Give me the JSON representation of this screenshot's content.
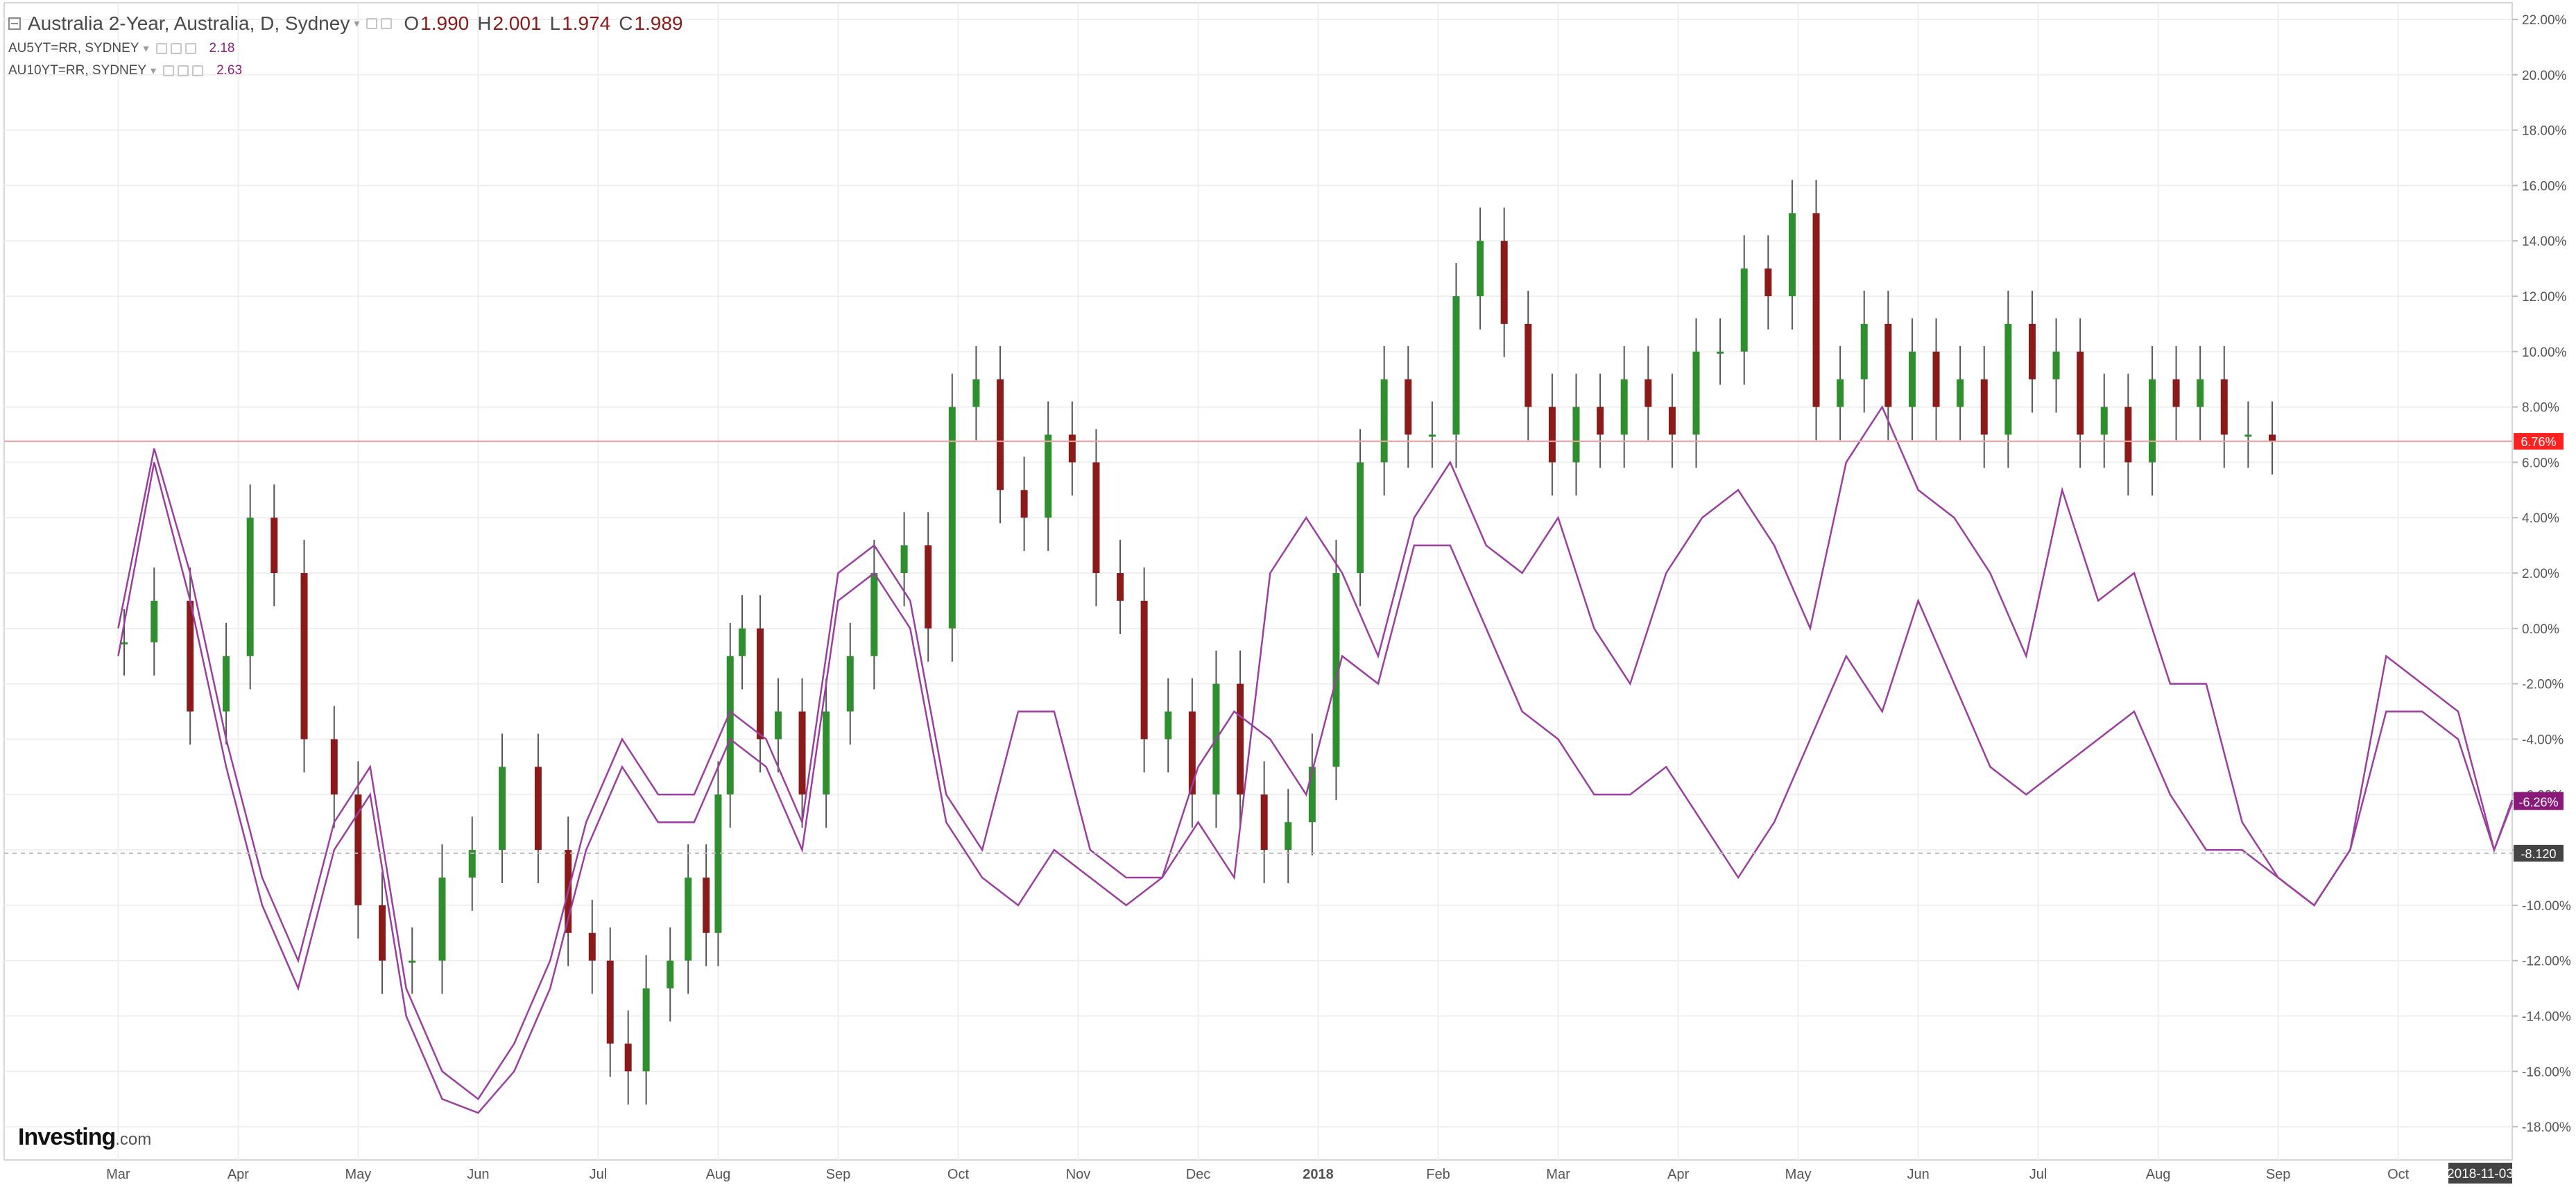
{
  "legend": {
    "main": {
      "title": "Australia 2-Year, Australia, D, Sydney",
      "o_label": "O",
      "o": "1.990",
      "h_label": "H",
      "h": "2.001",
      "l_label": "L",
      "l": "1.974",
      "c_label": "C",
      "c": "1.989"
    },
    "indicators": [
      {
        "name": "AU5YT=RR, SYDNEY",
        "value": "2.18",
        "color": "#9b3f9e"
      },
      {
        "name": "AU10YT=RR, SYDNEY",
        "value": "2.63",
        "color": "#9b3f9e"
      }
    ]
  },
  "logo": {
    "brand": "Investing",
    "suffix": ".com"
  },
  "colors": {
    "up_candle": "#2f8f2f",
    "down_candle": "#8b1a1a",
    "wick": "#555555",
    "line_series": "#9b3f9e",
    "hline": "#f0a0a0",
    "badge_red": "#ff2020",
    "badge_purple": "#8a1a7a",
    "badge_dark": "#444444",
    "grid": "#efefef"
  },
  "chart_data": {
    "type": "line",
    "title": "Australia 2-Year, Australia, D, Sydney",
    "ylabel": "",
    "ylim": [
      -19,
      22.5
    ],
    "y_ticks": [
      "22.00%",
      "20.00%",
      "18.00%",
      "16.00%",
      "14.00%",
      "12.00%",
      "10.00%",
      "8.00%",
      "6.00%",
      "4.00%",
      "2.00%",
      "0.00%",
      "-2.00%",
      "-4.00%",
      "-6.00%",
      "-8.00%",
      "-10.00%",
      "-12.00%",
      "-14.00%",
      "-16.00%",
      "-18.00%"
    ],
    "x_ticks": [
      "Mar",
      "Apr",
      "May",
      "Jun",
      "Jul",
      "Aug",
      "Sep",
      "Oct",
      "Nov",
      "Dec",
      "2018",
      "Feb",
      "Mar",
      "Apr",
      "May",
      "Jun",
      "Jul",
      "Aug",
      "Sep",
      "Oct"
    ],
    "x_tick_positions": [
      1,
      2,
      3,
      4,
      5,
      6,
      7,
      8,
      9,
      10,
      11,
      12,
      13,
      14,
      15,
      16,
      17,
      18,
      19,
      20
    ],
    "x_start_index": 0.05,
    "x_end_index": 20.95,
    "last_date_label": "2018-11-03",
    "candles_approx_close": [
      -0.5,
      1,
      -3,
      -1,
      4,
      2,
      -4,
      -6,
      -10,
      -12,
      -12,
      -9,
      -8,
      -5,
      -8,
      -11,
      -12,
      -15,
      -16,
      -13,
      -12,
      -9,
      -11,
      -6,
      -1,
      0,
      -4,
      -3,
      -6,
      -3,
      -1,
      2,
      3,
      0,
      8,
      9,
      5,
      4,
      7,
      6,
      2,
      1,
      -4,
      -3,
      -6,
      -2,
      -6,
      -8,
      -7,
      -5,
      2,
      6,
      9,
      7,
      7,
      12,
      14,
      11,
      8,
      6,
      8,
      7,
      9,
      8,
      7,
      10,
      10,
      13,
      12,
      15,
      8,
      9,
      11,
      8,
      10,
      8,
      9,
      7,
      11,
      9,
      10,
      7,
      8,
      6,
      9,
      8,
      9,
      7,
      7,
      6.76
    ],
    "candle_tick_positions": [
      1.05,
      1.3,
      1.6,
      1.9,
      2.1,
      2.3,
      2.55,
      2.8,
      3.0,
      3.2,
      3.45,
      3.7,
      3.95,
      4.2,
      4.5,
      4.75,
      4.95,
      5.1,
      5.25,
      5.4,
      5.6,
      5.75,
      5.9,
      6.0,
      6.1,
      6.2,
      6.35,
      6.5,
      6.7,
      6.9,
      7.1,
      7.3,
      7.55,
      7.75,
      7.95,
      8.15,
      8.35,
      8.55,
      8.75,
      8.95,
      9.15,
      9.35,
      9.55,
      9.75,
      9.95,
      10.15,
      10.35,
      10.55,
      10.75,
      10.95,
      11.15,
      11.35,
      11.55,
      11.75,
      11.95,
      12.15,
      12.35,
      12.55,
      12.75,
      12.95,
      13.15,
      13.35,
      13.55,
      13.75,
      13.95,
      14.15,
      14.35,
      14.55,
      14.75,
      14.95,
      15.15,
      15.35,
      15.55,
      15.75,
      15.95,
      16.15,
      16.35,
      16.55,
      16.75,
      16.95,
      17.15,
      17.35,
      17.55,
      17.75,
      17.95,
      18.15,
      18.35,
      18.55,
      18.75,
      18.95
    ],
    "series": [
      {
        "name": "AU5YT=RR, SYDNEY",
        "x": [
          1.0,
          1.3,
          1.6,
          1.9,
          2.2,
          2.5,
          2.8,
          3.1,
          3.4,
          3.7,
          4.0,
          4.3,
          4.6,
          4.9,
          5.2,
          5.5,
          5.8,
          6.1,
          6.4,
          6.7,
          7.0,
          7.3,
          7.6,
          7.9,
          8.2,
          8.5,
          8.8,
          9.1,
          9.4,
          9.7,
          10.0,
          10.3,
          10.6,
          10.9,
          11.2,
          11.5,
          11.8,
          12.1,
          12.4,
          12.7,
          13.0,
          13.3,
          13.6,
          13.9,
          14.2,
          14.5,
          14.8,
          15.1,
          15.4,
          15.7,
          16.0,
          16.3,
          16.6,
          16.9,
          17.2,
          17.5,
          17.8,
          18.1,
          18.4,
          18.7,
          19.0,
          19.3,
          19.6,
          19.9,
          20.2,
          20.5,
          20.8,
          20.95
        ],
        "y": [
          0,
          6.5,
          2,
          -4,
          -9,
          -12,
          -7,
          -5,
          -13,
          -16,
          -17,
          -15,
          -12,
          -7,
          -4,
          -6,
          -6,
          -3,
          -4,
          -7,
          2,
          3,
          1,
          -6,
          -8,
          -3,
          -3,
          -8,
          -9,
          -9,
          -7,
          -9,
          2,
          4,
          2,
          -1,
          4,
          6,
          3,
          2,
          4,
          0,
          -2,
          2,
          4,
          5,
          3,
          0,
          6,
          8,
          5,
          4,
          2,
          -1,
          5,
          1,
          2,
          -2,
          -2,
          -7,
          -9,
          -10,
          -8,
          -3,
          -3,
          -4,
          -8,
          -6.2
        ]
      },
      {
        "name": "AU10YT=RR, SYDNEY",
        "x": [
          1.0,
          1.3,
          1.6,
          1.9,
          2.2,
          2.5,
          2.8,
          3.1,
          3.4,
          3.7,
          4.0,
          4.3,
          4.6,
          4.9,
          5.2,
          5.5,
          5.8,
          6.1,
          6.4,
          6.7,
          7.0,
          7.3,
          7.6,
          7.9,
          8.2,
          8.5,
          8.8,
          9.1,
          9.4,
          9.7,
          10.0,
          10.3,
          10.6,
          10.9,
          11.2,
          11.5,
          11.8,
          12.1,
          12.4,
          12.7,
          13.0,
          13.3,
          13.6,
          13.9,
          14.2,
          14.5,
          14.8,
          15.1,
          15.4,
          15.7,
          16.0,
          16.3,
          16.6,
          16.9,
          17.2,
          17.5,
          17.8,
          18.1,
          18.4,
          18.7,
          19.0,
          19.3,
          19.6,
          19.9,
          20.2,
          20.5,
          20.8,
          20.95
        ],
        "y": [
          -1,
          6,
          1,
          -5,
          -10,
          -13,
          -8,
          -6,
          -14,
          -17,
          -17.5,
          -16,
          -13,
          -8,
          -5,
          -7,
          -7,
          -4,
          -5,
          -8,
          1,
          2,
          0,
          -7,
          -9,
          -10,
          -8,
          -9,
          -10,
          -9,
          -5,
          -3,
          -4,
          -6,
          -1,
          -2,
          3,
          3,
          0,
          -3,
          -4,
          -6,
          -6,
          -5,
          -7,
          -9,
          -7,
          -4,
          -1,
          -3,
          1,
          -2,
          -5,
          -6,
          -5,
          -4,
          -3,
          -6,
          -8,
          -8,
          -9,
          -10,
          -8,
          -1,
          -2,
          -3,
          -8,
          -6.3
        ]
      }
    ],
    "horizontal_line": {
      "value": 6.76
    },
    "badges": [
      {
        "label": "6.76%",
        "value": 6.76,
        "color": "#ff2020"
      },
      {
        "label": "-6.21%",
        "value": -6.21,
        "color": "#8a1a7a"
      },
      {
        "label": "-6.26%",
        "value": -6.26,
        "color": "#8a1a7a"
      },
      {
        "label": "-8.120",
        "value": -8.12,
        "color": "#444444"
      }
    ],
    "crosshair_value": -8.12,
    "grid": true,
    "legend_position": "top-left"
  }
}
